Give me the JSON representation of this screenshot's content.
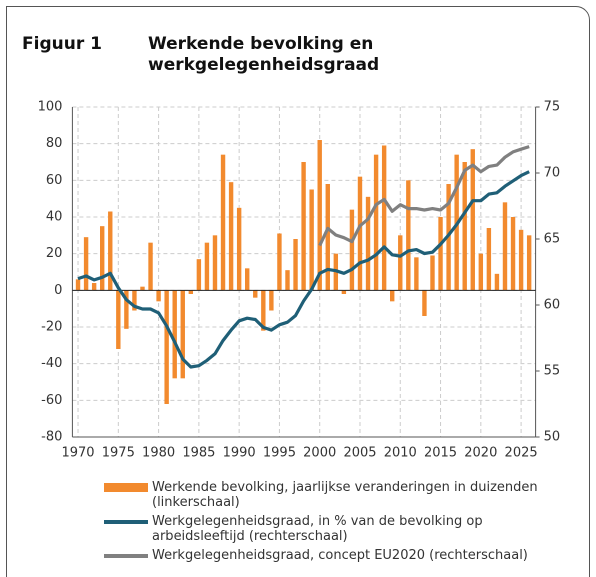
{
  "chart_data": {
    "type": "bar_line",
    "figure_label": "Figuur 1",
    "title": "Werkende bevolking en werkgelegenheidsgraad",
    "x": [
      1970,
      1971,
      1972,
      1973,
      1974,
      1975,
      1976,
      1977,
      1978,
      1979,
      1980,
      1981,
      1982,
      1983,
      1984,
      1985,
      1986,
      1987,
      1988,
      1989,
      1990,
      1991,
      1992,
      1993,
      1994,
      1995,
      1996,
      1997,
      1998,
      1999,
      2000,
      2001,
      2002,
      2003,
      2004,
      2005,
      2006,
      2007,
      2008,
      2009,
      2010,
      2011,
      2012,
      2013,
      2014,
      2015,
      2016,
      2017,
      2018,
      2019,
      2020,
      2021,
      2022,
      2023,
      2024,
      2025,
      2026
    ],
    "xlim": [
      1969.3,
      2026.8
    ],
    "xticks": [
      1970,
      1975,
      1980,
      1985,
      1990,
      1995,
      2000,
      2005,
      2010,
      2015,
      2020,
      2025
    ],
    "ylim": [
      -80,
      100
    ],
    "yticks": [
      -80,
      -60,
      -40,
      -20,
      0,
      20,
      40,
      60,
      80,
      100
    ],
    "y2lim": [
      50,
      75
    ],
    "y2ticks": [
      50,
      55,
      60,
      65,
      70,
      75
    ],
    "grid": true,
    "series": [
      {
        "name": "Werkende bevolking, jaarlijkse veranderingen in duizenden (linkerschaal)",
        "color": "#f28a2e",
        "kind": "bar",
        "values": [
          6,
          29,
          4,
          35,
          43,
          -32,
          -21,
          -11,
          2,
          26,
          -6,
          -62,
          -48,
          -48,
          -2,
          17,
          26,
          30,
          74,
          59,
          45,
          12,
          -4,
          -22,
          -11,
          31,
          11,
          28,
          70,
          55,
          82,
          58,
          20,
          -2,
          44,
          62,
          51,
          74,
          79,
          -6,
          30,
          60,
          18,
          -14,
          19,
          40,
          58,
          74,
          70,
          77,
          20,
          34,
          9,
          48,
          40,
          33,
          30
        ]
      },
      {
        "name": "Werkgelegenheidsgraad, in % van de bevolking op arbeidsleeftijd (rechterschaal)",
        "color": "#1f5f77",
        "kind": "line",
        "axis": "y2",
        "values": [
          62.0,
          62.2,
          61.9,
          62.1,
          62.4,
          61.3,
          60.4,
          59.9,
          59.7,
          59.7,
          59.4,
          58.4,
          57.2,
          55.9,
          55.3,
          55.4,
          55.8,
          56.3,
          57.3,
          58.1,
          58.8,
          59.0,
          58.9,
          58.3,
          58.1,
          58.5,
          58.7,
          59.2,
          60.3,
          61.2,
          62.4,
          62.7,
          62.6,
          62.4,
          62.7,
          63.2,
          63.4,
          63.8,
          64.4,
          63.8,
          63.7,
          64.1,
          64.2,
          63.9,
          64.0,
          64.6,
          65.3,
          66.1,
          67.0,
          67.9,
          67.9,
          68.4,
          68.5,
          69.0,
          69.4,
          69.8,
          70.1
        ]
      },
      {
        "name": "Werkgelegenheidsgraad, concept EU2020 (rechterschaal)",
        "color": "#808080",
        "kind": "line",
        "axis": "y2",
        "values": [
          null,
          null,
          null,
          null,
          null,
          null,
          null,
          null,
          null,
          null,
          null,
          null,
          null,
          null,
          null,
          null,
          null,
          null,
          null,
          null,
          null,
          null,
          null,
          null,
          null,
          null,
          null,
          null,
          null,
          null,
          64.5,
          65.8,
          65.3,
          65.1,
          64.8,
          66.0,
          66.5,
          67.6,
          68.0,
          67.1,
          67.6,
          67.3,
          67.3,
          67.2,
          67.3,
          67.2,
          67.7,
          68.9,
          70.2,
          70.6,
          70.1,
          70.5,
          70.6,
          71.2,
          71.6,
          71.8,
          72.0
        ]
      }
    ]
  }
}
